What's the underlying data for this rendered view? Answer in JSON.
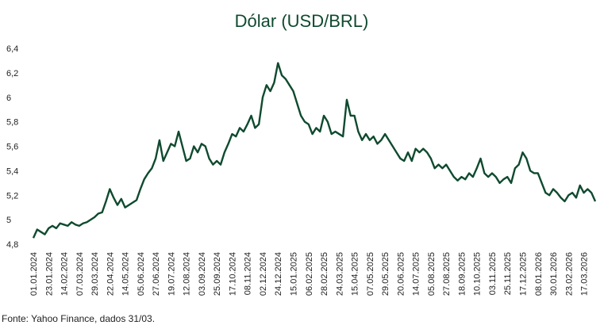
{
  "chart_data": {
    "type": "line",
    "title": "Dólar (USD/BRL)",
    "source": "Fonte: Yahoo Finance, dados 31/03.",
    "color": "#0f4a2f",
    "categories": [
      "01.01.2024",
      null,
      null,
      null,
      "23.01.2024",
      null,
      null,
      null,
      "14.02.2024",
      null,
      null,
      null,
      "07.03.2024",
      null,
      null,
      null,
      "29.03.2024",
      null,
      null,
      null,
      "22.04.2024",
      null,
      null,
      null,
      "14.05.2024",
      null,
      null,
      null,
      "05.06.2024",
      null,
      null,
      null,
      "27.06.2024",
      null,
      null,
      null,
      "19.07.2024",
      null,
      null,
      null,
      "12.08.2024",
      null,
      null,
      null,
      "03.09.2024",
      null,
      null,
      null,
      "25.09.2024",
      null,
      null,
      null,
      "17.10.2024",
      null,
      null,
      null,
      "08.11.2024",
      null,
      null,
      null,
      "02.12.2024",
      null,
      null,
      null,
      "24.12.2024",
      null,
      null,
      null,
      "15.01.2025",
      null,
      null,
      null,
      "06.02.2025",
      null,
      null,
      null,
      "28.02.2025",
      null,
      null,
      null,
      "24.03.2025",
      null,
      null,
      null,
      "15.04.2025",
      null,
      null,
      null,
      "07.05.2025",
      null,
      null,
      null,
      "29.05.2025",
      null,
      null,
      null,
      "20.06.2025",
      null,
      null,
      null,
      "14.07.2025",
      null,
      null,
      null,
      "05.08.2025",
      null,
      null,
      null,
      "27.08.2025",
      null,
      null,
      null,
      "18.09.2025",
      null,
      null,
      null,
      "10.10.2025",
      null,
      null,
      null,
      "03.11.2025",
      null,
      null,
      null,
      "25.11.2025",
      null,
      null,
      null,
      "17.12.2025",
      null,
      null,
      null,
      "08.01.2026",
      null,
      null,
      null,
      "30.01.2026",
      null,
      null,
      null,
      "23.02.2026",
      null,
      null,
      null,
      "17.03.2026",
      null,
      null,
      null
    ],
    "values": [
      4.85,
      4.92,
      4.9,
      4.88,
      4.93,
      4.95,
      4.93,
      4.97,
      4.96,
      4.95,
      4.98,
      4.96,
      4.95,
      4.97,
      4.98,
      5.0,
      5.02,
      5.05,
      5.06,
      5.15,
      5.25,
      5.18,
      5.12,
      5.17,
      5.1,
      5.12,
      5.14,
      5.16,
      5.25,
      5.33,
      5.38,
      5.42,
      5.5,
      5.65,
      5.48,
      5.55,
      5.62,
      5.6,
      5.72,
      5.6,
      5.48,
      5.5,
      5.6,
      5.55,
      5.62,
      5.6,
      5.5,
      5.45,
      5.48,
      5.45,
      5.55,
      5.62,
      5.7,
      5.68,
      5.75,
      5.72,
      5.78,
      5.85,
      5.75,
      5.78,
      6.0,
      6.1,
      6.05,
      6.12,
      6.28,
      6.18,
      6.15,
      6.1,
      6.05,
      5.95,
      5.85,
      5.8,
      5.78,
      5.7,
      5.75,
      5.72,
      5.85,
      5.8,
      5.7,
      5.72,
      5.7,
      5.68,
      5.98,
      5.85,
      5.85,
      5.72,
      5.65,
      5.7,
      5.65,
      5.68,
      5.62,
      5.65,
      5.7,
      5.65,
      5.6,
      5.55,
      5.5,
      5.48,
      5.55,
      5.48,
      5.58,
      5.55,
      5.58,
      5.55,
      5.5,
      5.42,
      5.45,
      5.42,
      5.45,
      5.4,
      5.35,
      5.32,
      5.35,
      5.33,
      5.38,
      5.35,
      5.42,
      5.5,
      5.38,
      5.35,
      5.38,
      5.35,
      5.3,
      5.33,
      5.35,
      5.3,
      5.42,
      5.45,
      5.55,
      5.5,
      5.4,
      5.38,
      5.38,
      5.3,
      5.22,
      5.2,
      5.25,
      5.22,
      5.18,
      5.15,
      5.2,
      5.22,
      5.18,
      5.28,
      5.22,
      5.25,
      5.22,
      5.15
    ],
    "ylim": [
      4.8,
      6.4
    ],
    "yticks": [
      {
        "value": 4.8,
        "label": "4,8"
      },
      5,
      {
        "value": 5.2,
        "label": "5,2"
      },
      {
        "value": 5.4,
        "label": "5,4"
      },
      {
        "value": 5.6,
        "label": "5,6"
      },
      {
        "value": 5.8,
        "label": "5,8"
      },
      6,
      {
        "value": 6.2,
        "label": "6,2"
      },
      {
        "value": 6.4,
        "label": "6,4"
      }
    ]
  }
}
